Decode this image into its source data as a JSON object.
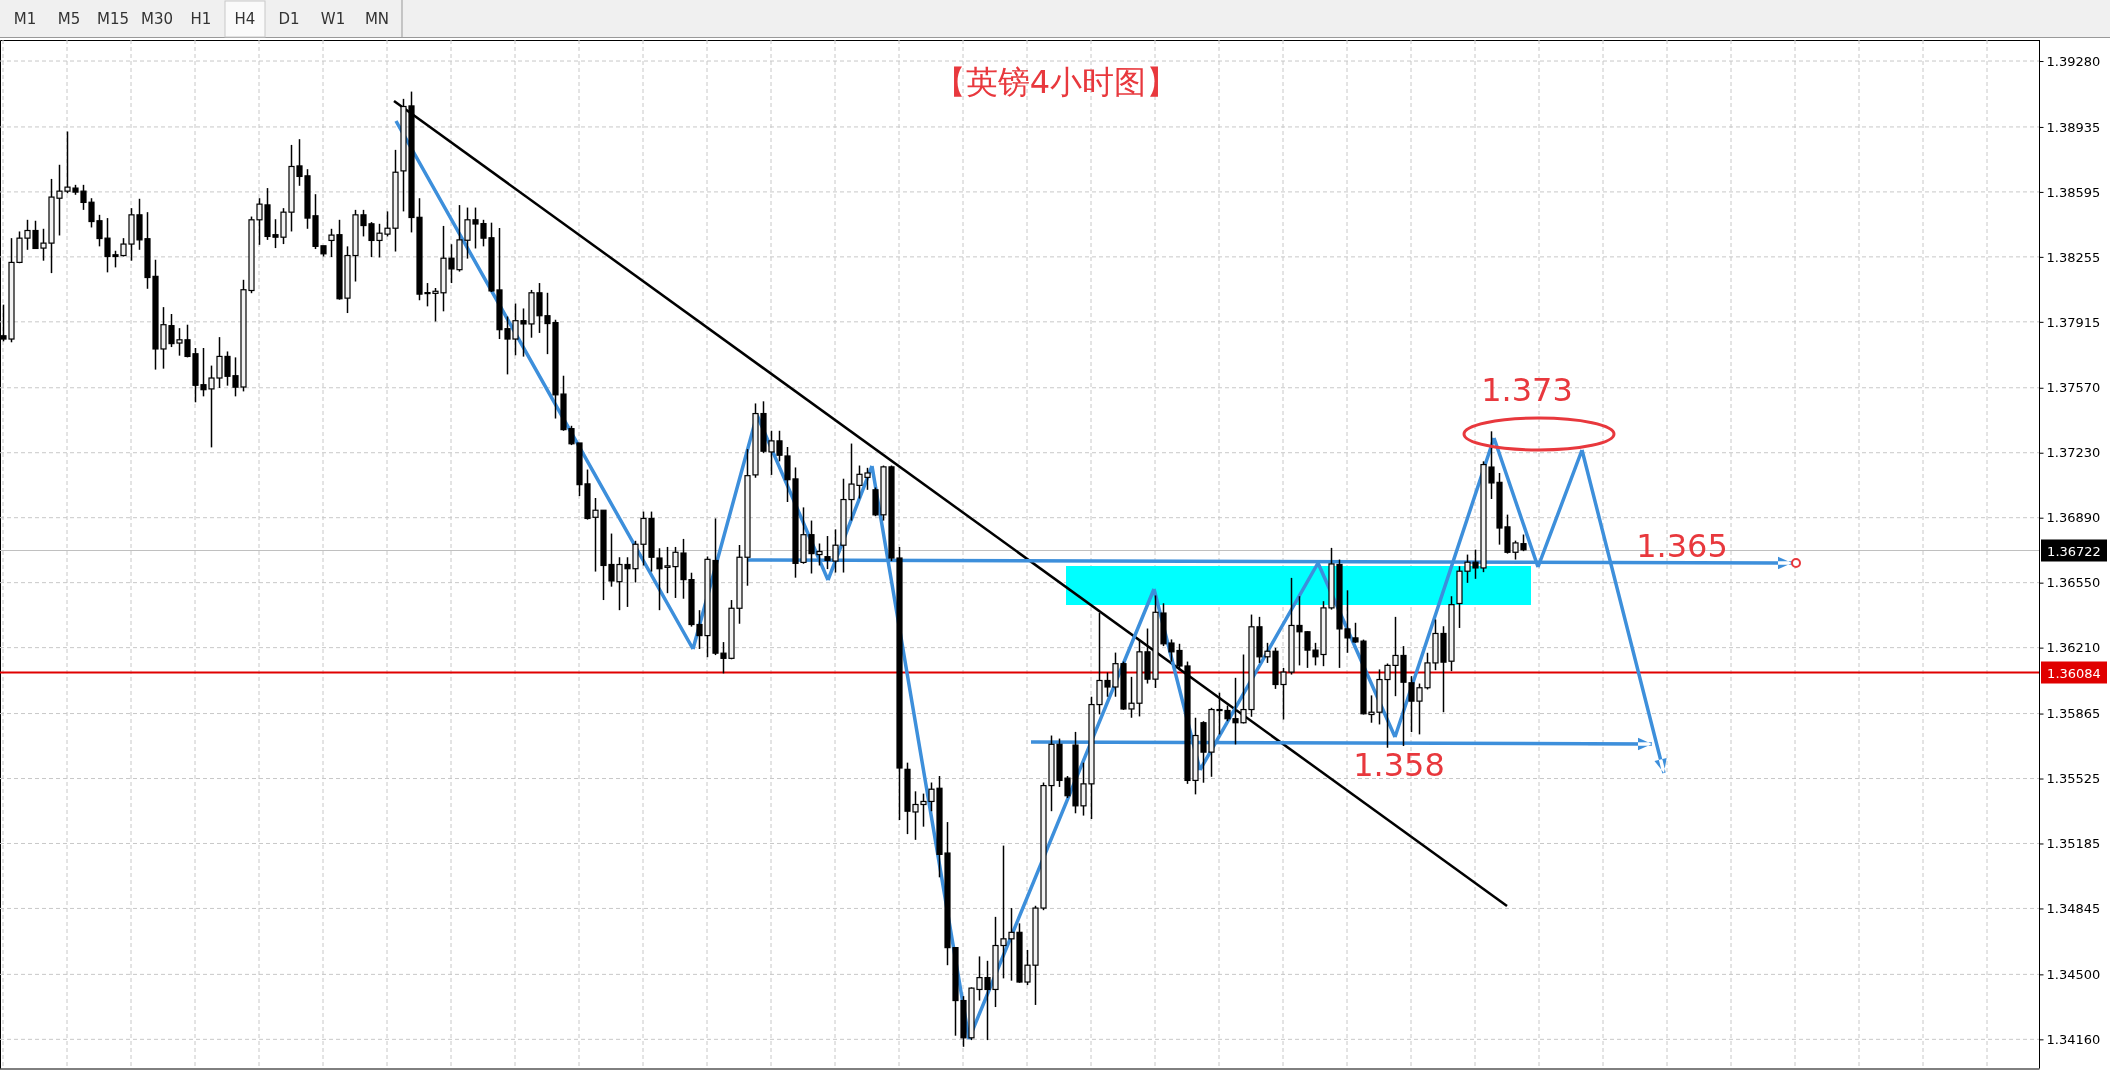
{
  "chart_data": {
    "type": "candlestick",
    "title": "【英镑4小时图】",
    "categories": [
      null,
      null,
      null,
      null,
      null,
      null,
      null,
      null,
      null,
      null,
      null,
      null,
      null,
      null,
      null,
      null,
      null,
      null,
      null,
      null,
      null,
      null,
      null,
      null,
      null,
      null,
      null,
      null,
      null,
      null,
      null,
      null,
      null,
      null,
      null,
      null,
      null,
      null,
      null,
      null,
      null,
      null,
      null,
      null,
      null,
      null,
      null,
      null,
      null,
      null,
      null,
      null,
      null,
      null,
      null,
      null,
      null,
      null,
      null,
      null,
      null,
      null,
      null,
      null,
      null,
      null,
      null,
      null,
      null,
      null,
      null,
      null,
      null,
      null,
      null,
      null,
      null,
      null,
      null,
      null,
      null,
      null,
      null,
      null,
      null,
      null,
      null,
      null,
      null,
      null,
      null,
      null,
      null,
      null,
      null,
      null,
      null,
      null,
      null,
      null,
      null,
      null,
      null,
      null,
      null,
      null,
      null,
      null,
      null,
      null,
      null,
      null,
      null,
      null,
      null,
      null,
      null,
      null,
      null,
      null,
      null,
      null,
      null,
      null,
      null,
      null,
      null,
      null,
      null,
      null,
      null,
      null,
      null,
      null,
      null,
      null,
      null,
      null,
      null,
      null,
      null,
      null,
      null,
      null,
      null,
      null,
      null,
      null,
      null,
      null,
      null,
      null,
      null,
      null,
      null,
      null,
      null,
      null,
      null,
      null,
      null,
      null,
      null,
      null,
      null,
      null,
      null,
      null,
      null,
      null,
      null,
      null,
      null,
      null,
      null,
      null,
      null,
      null,
      null,
      null,
      null,
      null,
      null,
      null,
      null,
      null,
      null,
      null,
      null,
      null,
      null,
      null,
      null,
      null,
      null,
      null,
      null,
      null,
      null,
      null,
      null,
      null,
      null,
      null,
      null,
      null,
      null,
      null,
      null,
      null,
      null,
      null,
      null,
      null,
      null,
      null,
      null,
      null,
      null,
      null,
      null,
      null,
      null,
      null,
      null,
      null,
      null,
      null,
      null,
      null,
      null,
      null,
      null,
      null,
      null,
      null,
      null,
      null,
      null,
      null,
      null,
      null,
      null,
      null,
      null,
      null,
      null,
      null,
      null,
      null,
      null,
      null,
      null,
      null,
      null
    ],
    "ohlc": [
      [
        1.37842,
        1.38005,
        1.37813,
        1.37825
      ],
      [
        1.37825,
        1.38353,
        1.37808,
        1.38226
      ],
      [
        1.38226,
        1.38388,
        1.38222,
        1.38353
      ],
      [
        1.38353,
        1.38449,
        1.38292,
        1.38393
      ],
      [
        1.38393,
        1.38444,
        1.38299,
        1.38299
      ],
      [
        1.38301,
        1.38402,
        1.38235,
        1.38327
      ],
      [
        1.38327,
        1.38663,
        1.3817,
        1.38568
      ],
      [
        1.38562,
        1.38737,
        1.38367,
        1.38599
      ],
      [
        1.38599,
        1.38911,
        1.38588,
        1.3862
      ],
      [
        1.38615,
        1.38632,
        1.3858,
        1.38594
      ],
      [
        1.38599,
        1.38632,
        1.38501,
        1.3854
      ],
      [
        1.38541,
        1.38562,
        1.38409,
        1.3844
      ],
      [
        1.38444,
        1.38475,
        1.3831,
        1.38351
      ],
      [
        1.38353,
        1.38458,
        1.38174,
        1.38257
      ],
      [
        1.38266,
        1.38287,
        1.382,
        1.38257
      ],
      [
        1.38262,
        1.38353,
        1.38257,
        1.38322
      ],
      [
        1.38322,
        1.3851,
        1.38235,
        1.38475
      ],
      [
        1.38475,
        1.38559,
        1.38292,
        1.38344
      ],
      [
        1.3835,
        1.38489,
        1.38088,
        1.38147
      ],
      [
        1.38153,
        1.3824,
        1.37665,
        1.37773
      ],
      [
        1.37773,
        1.37992,
        1.3767,
        1.379
      ],
      [
        1.37895,
        1.37956,
        1.37783,
        1.37801
      ],
      [
        1.37804,
        1.37882,
        1.37738,
        1.37821
      ],
      [
        1.37821,
        1.379,
        1.37729,
        1.37734
      ],
      [
        1.37748,
        1.37778,
        1.37494,
        1.37583
      ],
      [
        1.37586,
        1.37778,
        1.37525,
        1.3756
      ],
      [
        1.37564,
        1.37686,
        1.37258,
        1.37621
      ],
      [
        1.37621,
        1.37835,
        1.37569,
        1.37734
      ],
      [
        1.37734,
        1.3776,
        1.37581,
        1.3763
      ],
      [
        1.37633,
        1.37729,
        1.37525,
        1.37573
      ],
      [
        1.37574,
        1.38135,
        1.37551,
        1.38083
      ],
      [
        1.38079,
        1.38466,
        1.38065,
        1.38449
      ],
      [
        1.38449,
        1.38562,
        1.38318,
        1.38531
      ],
      [
        1.38527,
        1.38615,
        1.38344,
        1.38362
      ],
      [
        1.38371,
        1.38452,
        1.38301,
        1.38358
      ],
      [
        1.38358,
        1.3851,
        1.38322,
        1.38489
      ],
      [
        1.38489,
        1.38841,
        1.38388,
        1.38728
      ],
      [
        1.38731,
        1.38871,
        1.38627,
        1.38676
      ],
      [
        1.38679,
        1.38714,
        1.38402,
        1.38458
      ],
      [
        1.3847,
        1.38583,
        1.38296,
        1.3831
      ],
      [
        1.38313,
        1.38313,
        1.38257,
        1.38271
      ],
      [
        1.38341,
        1.38402,
        1.38254,
        1.38369
      ],
      [
        1.38371,
        1.38449,
        1.38031,
        1.38036
      ],
      [
        1.38039,
        1.3831,
        1.37961,
        1.38262
      ],
      [
        1.38262,
        1.38501,
        1.38126,
        1.38475
      ],
      [
        1.38475,
        1.38501,
        1.38362,
        1.38419
      ],
      [
        1.38428,
        1.38437,
        1.38254,
        1.38341
      ],
      [
        1.38341,
        1.38428,
        1.38252,
        1.38379
      ],
      [
        1.38374,
        1.38493,
        1.38362,
        1.38405
      ],
      [
        1.38405,
        1.38815,
        1.38283,
        1.38698
      ],
      [
        1.38705,
        1.39082,
        1.38493,
        1.39042
      ],
      [
        1.39045,
        1.3912,
        1.38383,
        1.38461
      ],
      [
        1.38462,
        1.38562,
        1.38028,
        1.3806
      ],
      [
        1.38068,
        1.38118,
        1.37996,
        1.38064
      ],
      [
        1.38064,
        1.38092,
        1.37917,
        1.38075
      ],
      [
        1.38067,
        1.38417,
        1.3797,
        1.38248
      ],
      [
        1.38248,
        1.38321,
        1.38118,
        1.38192
      ],
      [
        1.38188,
        1.38526,
        1.38178,
        1.38344
      ],
      [
        1.38342,
        1.38513,
        1.38246,
        1.38449
      ],
      [
        1.38449,
        1.38513,
        1.38299,
        1.38427
      ],
      [
        1.38429,
        1.38449,
        1.3831,
        1.38353
      ],
      [
        1.38355,
        1.38434,
        1.38071,
        1.38077
      ],
      [
        1.38082,
        1.38406,
        1.37825,
        1.37874
      ],
      [
        1.37879,
        1.37943,
        1.3764,
        1.37825
      ],
      [
        1.37825,
        1.38011,
        1.3774,
        1.37921
      ],
      [
        1.37921,
        1.37985,
        1.37733,
        1.37904
      ],
      [
        1.37904,
        1.38082,
        1.37832,
        1.38067
      ],
      [
        1.38067,
        1.38118,
        1.37857,
        1.37947
      ],
      [
        1.37947,
        1.38067,
        1.37746,
        1.37906
      ],
      [
        1.37911,
        1.37926,
        1.37409,
        1.37533
      ],
      [
        1.37537,
        1.37633,
        1.37345,
        1.37351
      ],
      [
        1.37356,
        1.37371,
        1.3727,
        1.37277
      ],
      [
        1.37281,
        1.37281,
        1.37003,
        1.37063
      ],
      [
        1.37067,
        1.37142,
        1.3688,
        1.36886
      ],
      [
        1.36892,
        1.36993,
        1.36608,
        1.36929
      ],
      [
        1.36929,
        1.36929,
        1.36459,
        1.3664
      ],
      [
        1.36645,
        1.36807,
        1.36529,
        1.36559
      ],
      [
        1.36555,
        1.36683,
        1.36406,
        1.36645
      ],
      [
        1.36645,
        1.36683,
        1.36423,
        1.36623
      ],
      [
        1.36623,
        1.36769,
        1.36551,
        1.36751
      ],
      [
        1.36751,
        1.36922,
        1.3664,
        1.36886
      ],
      [
        1.36886,
        1.36922,
        1.36608,
        1.36683
      ],
      [
        1.36679,
        1.3673,
        1.36406,
        1.36623
      ],
      [
        1.3663,
        1.36737,
        1.36495,
        1.36638
      ],
      [
        1.36634,
        1.36737,
        1.3647,
        1.36709
      ],
      [
        1.36705,
        1.36779,
        1.36466,
        1.36566
      ],
      [
        1.36566,
        1.36602,
        1.3632,
        1.36331
      ],
      [
        1.36331,
        1.36406,
        1.36203,
        1.36273
      ],
      [
        1.36273,
        1.36687,
        1.3616,
        1.36672
      ],
      [
        1.36666,
        1.36886,
        1.36171,
        1.36181
      ],
      [
        1.36181,
        1.36239,
        1.36075,
        1.36154
      ],
      [
        1.36154,
        1.36459,
        1.36149,
        1.36416
      ],
      [
        1.36416,
        1.36747,
        1.36335,
        1.36683
      ],
      [
        1.36683,
        1.37249,
        1.36534,
        1.3711
      ],
      [
        1.37114,
        1.37488,
        1.37099,
        1.37435
      ],
      [
        1.37435,
        1.37499,
        1.37228,
        1.37238
      ],
      [
        1.37234,
        1.37345,
        1.37114,
        1.37292
      ],
      [
        1.37292,
        1.37345,
        1.37185,
        1.37217
      ],
      [
        1.37213,
        1.3726,
        1.36972,
        1.37089
      ],
      [
        1.37093,
        1.37153,
        1.36576,
        1.36651
      ],
      [
        1.36656,
        1.36944,
        1.36649,
        1.36801
      ],
      [
        1.36801,
        1.36875,
        1.36598,
        1.36702
      ],
      [
        1.36697,
        1.36755,
        1.3664,
        1.36713
      ],
      [
        1.36686,
        1.36794,
        1.36621,
        1.36667
      ],
      [
        1.36663,
        1.36829,
        1.36603,
        1.36746
      ],
      [
        1.36746,
        1.37094,
        1.36603,
        1.36985
      ],
      [
        1.36985,
        1.37278,
        1.36875,
        1.37066
      ],
      [
        1.37059,
        1.37163,
        1.3699,
        1.37117
      ],
      [
        1.37101,
        1.37151,
        1.37036,
        1.37124
      ],
      [
        1.37036,
        1.37048,
        1.36898,
        1.36905
      ],
      [
        1.36905,
        1.37163,
        1.36875,
        1.37156
      ],
      [
        1.37156,
        1.37163,
        1.36663,
        1.36679
      ],
      [
        1.36679,
        1.36737,
        1.35308,
        1.3558
      ],
      [
        1.35573,
        1.35608,
        1.35234,
        1.35354
      ],
      [
        1.3535,
        1.35458,
        1.35204,
        1.35389
      ],
      [
        1.35389,
        1.35446,
        1.35273,
        1.35405
      ],
      [
        1.35405,
        1.35504,
        1.35354,
        1.35469
      ],
      [
        1.35474,
        1.35538,
        1.35008,
        1.35128
      ],
      [
        1.35135,
        1.35297,
        1.34548,
        1.3464
      ],
      [
        1.3464,
        1.3464,
        1.34179,
        1.34363
      ],
      [
        1.34363,
        1.34386,
        1.34121,
        1.34168
      ],
      [
        1.34168,
        1.34432,
        1.34156,
        1.34428
      ],
      [
        1.34421,
        1.34594,
        1.34363,
        1.34483
      ],
      [
        1.34483,
        1.34571,
        1.34156,
        1.34421
      ],
      [
        1.34421,
        1.34801,
        1.34329,
        1.34651
      ],
      [
        1.34651,
        1.35174,
        1.34479,
        1.34686
      ],
      [
        1.34686,
        1.34847,
        1.34467,
        1.3472
      ],
      [
        1.3472,
        1.34767,
        1.34456,
        1.3446
      ],
      [
        1.3446,
        1.34628,
        1.34444,
        1.34548
      ],
      [
        1.34548,
        1.34859,
        1.3434,
        1.34847
      ],
      [
        1.34847,
        1.35504,
        1.34836,
        1.35488
      ],
      [
        1.35488,
        1.3575,
        1.35354,
        1.35704
      ],
      [
        1.35704,
        1.35734,
        1.35481,
        1.35515
      ],
      [
        1.35527,
        1.35538,
        1.35423,
        1.35435
      ],
      [
        1.357,
        1.35769,
        1.35343,
        1.35382
      ],
      [
        1.35382,
        1.35608,
        1.35331,
        1.35497
      ],
      [
        1.35497,
        1.35953,
        1.35313,
        1.35912
      ],
      [
        1.35912,
        1.36391,
        1.35861,
        1.36038
      ],
      [
        1.36038,
        1.3608,
        1.35953,
        1.36004
      ],
      [
        1.36004,
        1.36184,
        1.35953,
        1.36126
      ],
      [
        1.36126,
        1.36137,
        1.35884,
        1.35889
      ],
      [
        1.35889,
        1.36057,
        1.35843,
        1.35919
      ],
      [
        1.35919,
        1.36253,
        1.3585,
        1.36188
      ],
      [
        1.36188,
        1.3631,
        1.36022,
        1.36045
      ],
      [
        1.36045,
        1.36483,
        1.35999,
        1.36395
      ],
      [
        1.36391,
        1.36442,
        1.36218,
        1.3623
      ],
      [
        1.36234,
        1.36253,
        1.36137,
        1.36188
      ],
      [
        1.36195,
        1.3623,
        1.36091,
        1.36114
      ],
      [
        1.36114,
        1.36137,
        1.35497,
        1.35515
      ],
      [
        1.35515,
        1.35843,
        1.35442,
        1.3575
      ],
      [
        1.35817,
        1.35825,
        1.35503,
        1.35663
      ],
      [
        1.35663,
        1.35895,
        1.35534,
        1.35886
      ],
      [
        1.35886,
        1.35974,
        1.35756,
        1.35881
      ],
      [
        1.35881,
        1.35907,
        1.35825,
        1.35838
      ],
      [
        1.35838,
        1.36052,
        1.35703,
        1.35817
      ],
      [
        1.35817,
        1.36174,
        1.35813,
        1.35886
      ],
      [
        1.35886,
        1.36383,
        1.35848,
        1.36319
      ],
      [
        1.36319,
        1.36371,
        1.3613,
        1.36162
      ],
      [
        1.36162,
        1.36235,
        1.3613,
        1.36191
      ],
      [
        1.36191,
        1.36209,
        1.35994,
        1.36017
      ],
      [
        1.36017,
        1.36104,
        1.35834,
        1.36082
      ],
      [
        1.36082,
        1.36575,
        1.36069,
        1.36326
      ],
      [
        1.36326,
        1.36479,
        1.36117,
        1.36293
      ],
      [
        1.36293,
        1.36296,
        1.36104,
        1.36197
      ],
      [
        1.36197,
        1.36235,
        1.36117,
        1.36162
      ],
      [
        1.36174,
        1.36453,
        1.36113,
        1.36418
      ],
      [
        1.36418,
        1.36732,
        1.36409,
        1.36648
      ],
      [
        1.36645,
        1.36671,
        1.36104,
        1.36308
      ],
      [
        1.36308,
        1.3651,
        1.36183,
        1.36261
      ],
      [
        1.36261,
        1.3634,
        1.36235,
        1.3624
      ],
      [
        1.36244,
        1.36252,
        1.3586,
        1.35864
      ],
      [
        1.3586,
        1.3596,
        1.35817,
        1.35872
      ],
      [
        1.35872,
        1.36096,
        1.35808,
        1.36043
      ],
      [
        1.36043,
        1.36127,
        1.35686,
        1.36117
      ],
      [
        1.36117,
        1.36371,
        1.35956,
        1.36169
      ],
      [
        1.36169,
        1.36218,
        1.35695,
        1.36029
      ],
      [
        1.36026,
        1.36061,
        1.35768,
        1.3593
      ],
      [
        1.3593,
        1.36022,
        1.35756,
        1.36
      ],
      [
        1.36,
        1.36183,
        1.35991,
        1.3613
      ],
      [
        1.3613,
        1.36357,
        1.36092,
        1.36284
      ],
      [
        1.36284,
        1.36322,
        1.35872,
        1.36134
      ],
      [
        1.36139,
        1.36479,
        1.36087,
        1.36435
      ],
      [
        1.36441,
        1.36636,
        1.36313,
        1.3661
      ],
      [
        1.3661,
        1.36697,
        1.36549,
        1.36657
      ],
      [
        1.36657,
        1.36723,
        1.3657,
        1.36627
      ],
      [
        1.36627,
        1.37185,
        1.36605,
        1.37168
      ],
      [
        1.37155,
        1.37342,
        1.36988,
        1.37072
      ],
      [
        1.37075,
        1.37124,
        1.36749,
        1.36836
      ],
      [
        1.36842,
        1.36906,
        1.36702,
        1.36709
      ],
      [
        1.36709,
        1.3677,
        1.36671,
        1.36758
      ],
      [
        1.36754,
        1.36802,
        1.36715,
        1.36722
      ],
      null,
      null,
      null,
      null,
      null,
      null,
      null,
      null,
      null,
      null,
      null,
      null,
      null,
      null,
      null,
      null,
      null,
      null,
      null,
      null,
      null,
      null,
      null,
      null,
      null,
      null,
      null,
      null,
      null,
      null,
      null,
      null,
      null,
      null,
      null,
      null,
      null,
      null,
      null,
      null,
      null,
      null,
      null,
      null,
      null,
      null,
      null,
      null,
      null,
      null,
      null,
      null,
      null,
      null,
      null,
      null,
      null,
      null,
      null,
      null,
      null,
      null,
      null,
      null
    ],
    "color": "#000000",
    "ylim": [
      1.3401,
      1.3939
    ],
    "yticks": [
      {
        "value": 1.3928,
        "label": "1.39280"
      },
      {
        "value": 1.38935,
        "label": "1.38935"
      },
      {
        "value": 1.38595,
        "label": "1.38595"
      },
      {
        "value": 1.38255,
        "label": "1.38255"
      },
      {
        "value": 1.37915,
        "label": "1.37915"
      },
      {
        "value": 1.3757,
        "label": "1.37570"
      },
      {
        "value": 1.3723,
        "label": "1.37230"
      },
      {
        "value": 1.3689,
        "label": "1.36890"
      },
      {
        "value": 1.3655,
        "label": "1.36550"
      },
      {
        "value": 1.3621,
        "label": "1.36210"
      },
      {
        "value": 1.35865,
        "label": "1.35865"
      },
      {
        "value": 1.35525,
        "label": "1.35525"
      },
      {
        "value": 1.35185,
        "label": "1.35185"
      },
      {
        "value": 1.34845,
        "label": "1.34845"
      },
      {
        "value": 1.345,
        "label": "1.34500"
      },
      {
        "value": 1.3416,
        "label": "1.34160"
      }
    ],
    "ref_lines": [
      {
        "axis": "y",
        "value": 1.36722,
        "label": "1.36722",
        "color": "#c0c0c0"
      },
      {
        "axis": "y",
        "value": 1.36084,
        "label": "1.36084",
        "color": "#e00000"
      }
    ],
    "annotations": [
      "M1",
      "M5",
      "M15",
      "M30",
      "H1",
      "H4",
      "D1",
      "W1",
      "MN",
      "1.373",
      "1.365",
      "1.358"
    ],
    "grid": true,
    "tick_labels": "y"
  }
}
